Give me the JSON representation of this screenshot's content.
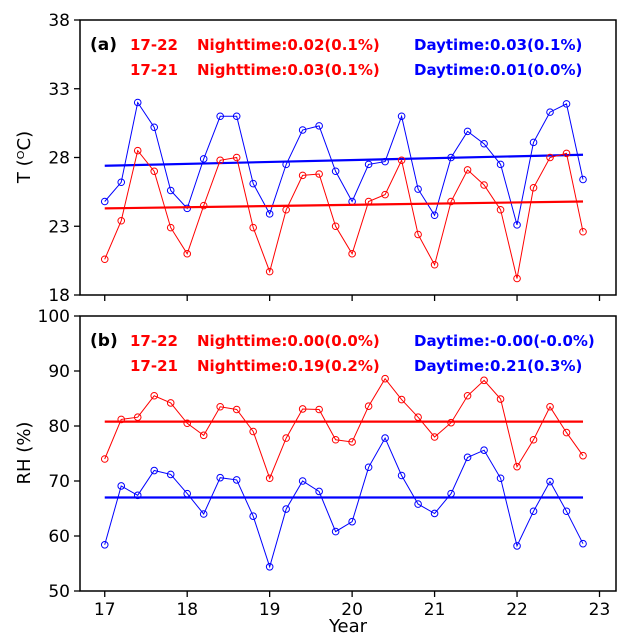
{
  "colors": {
    "nighttime": "#ff0000",
    "daytime": "#0000ff"
  },
  "xlabel": "Year",
  "x_ticks": [
    "17",
    "18",
    "19",
    "20",
    "21",
    "22",
    "23"
  ],
  "chart_data": [
    {
      "type": "line",
      "panel": "(a)",
      "ylabel": "T (ᴼC)",
      "ylim": [
        18,
        38
      ],
      "xlim": [
        16.7,
        23.2
      ],
      "y_ticks": [
        "18",
        "23",
        "28",
        "33",
        "38"
      ],
      "x": [
        17.0,
        17.2,
        17.4,
        17.6,
        17.8,
        18.0,
        18.2,
        18.4,
        18.6,
        18.8,
        19.0,
        19.2,
        19.4,
        19.6,
        19.8,
        20.0,
        20.2,
        20.4,
        20.6,
        20.8,
        21.0,
        21.2,
        21.4,
        21.6,
        21.8,
        22.0,
        22.2,
        22.4,
        22.6,
        22.8
      ],
      "series": [
        {
          "color": "#0000ff",
          "values": [
            24.8,
            26.2,
            32.0,
            30.2,
            25.6,
            24.3,
            27.9,
            31.0,
            31.0,
            26.1,
            23.9,
            27.5,
            30.0,
            30.3,
            27.0,
            24.8,
            27.5,
            27.7,
            31.0,
            25.7,
            23.8,
            28.0,
            29.9,
            29.0,
            27.5,
            23.1,
            29.1,
            31.3,
            31.9,
            26.4
          ],
          "trend": [
            27.4,
            28.2
          ]
        },
        {
          "color": "#ff0000",
          "values": [
            20.6,
            23.4,
            28.5,
            27.0,
            22.9,
            21.0,
            24.5,
            27.8,
            28.0,
            22.9,
            19.7,
            24.2,
            26.7,
            26.8,
            23.0,
            21.0,
            24.8,
            25.3,
            27.8,
            22.4,
            20.2,
            24.8,
            27.1,
            26.0,
            24.2,
            19.2,
            25.8,
            28.0,
            28.3,
            22.6
          ],
          "trend": [
            24.3,
            24.8
          ]
        }
      ],
      "annotations": [
        {
          "text": "17-22",
          "color": "#ff0000"
        },
        {
          "text": "Nighttime:0.02(0.1%)",
          "color": "#ff0000"
        },
        {
          "text": "Daytime:0.03(0.1%)",
          "color": "#0000ff"
        },
        {
          "text": "17-21",
          "color": "#ff0000"
        },
        {
          "text": "Nighttime:0.03(0.1%)",
          "color": "#ff0000"
        },
        {
          "text": "Daytime:0.01(0.0%)",
          "color": "#0000ff"
        }
      ]
    },
    {
      "type": "line",
      "panel": "(b)",
      "ylabel": "RH (%)",
      "ylim": [
        50,
        100
      ],
      "xlim": [
        16.7,
        23.2
      ],
      "y_ticks": [
        "50",
        "60",
        "70",
        "80",
        "90",
        "100"
      ],
      "x": [
        17.0,
        17.2,
        17.4,
        17.6,
        17.8,
        18.0,
        18.2,
        18.4,
        18.6,
        18.8,
        19.0,
        19.2,
        19.4,
        19.6,
        19.8,
        20.0,
        20.2,
        20.4,
        20.6,
        20.8,
        21.0,
        21.2,
        21.4,
        21.6,
        21.8,
        22.0,
        22.2,
        22.4,
        22.6,
        22.8
      ],
      "series": [
        {
          "color": "#ff0000",
          "values": [
            74.0,
            81.2,
            81.6,
            85.5,
            84.2,
            80.5,
            78.3,
            83.5,
            83.0,
            79.0,
            70.5,
            77.8,
            83.1,
            83.0,
            77.5,
            77.1,
            83.6,
            88.6,
            84.8,
            81.6,
            78.0,
            80.6,
            85.5,
            88.3,
            84.9,
            72.6,
            77.5,
            83.5,
            78.8,
            74.6
          ],
          "trend": [
            80.8,
            80.8
          ]
        },
        {
          "color": "#0000ff",
          "values": [
            58.4,
            69.1,
            67.4,
            71.9,
            71.2,
            67.7,
            64.0,
            70.6,
            70.2,
            63.6,
            54.4,
            64.9,
            70.0,
            68.1,
            60.8,
            62.6,
            72.5,
            77.8,
            71.0,
            65.8,
            64.1,
            67.7,
            74.3,
            75.6,
            70.5,
            58.2,
            64.5,
            69.9,
            64.5,
            58.6
          ],
          "trend": [
            67.0,
            67.0
          ]
        }
      ],
      "annotations": [
        {
          "text": "17-22",
          "color": "#ff0000"
        },
        {
          "text": "Nighttime:0.00(0.0%)",
          "color": "#ff0000"
        },
        {
          "text": "Daytime:-0.00(-0.0%)",
          "color": "#0000ff"
        },
        {
          "text": "17-21",
          "color": "#ff0000"
        },
        {
          "text": "Nighttime:0.19(0.2%)",
          "color": "#ff0000"
        },
        {
          "text": "Daytime:0.21(0.3%)",
          "color": "#0000ff"
        }
      ]
    }
  ]
}
